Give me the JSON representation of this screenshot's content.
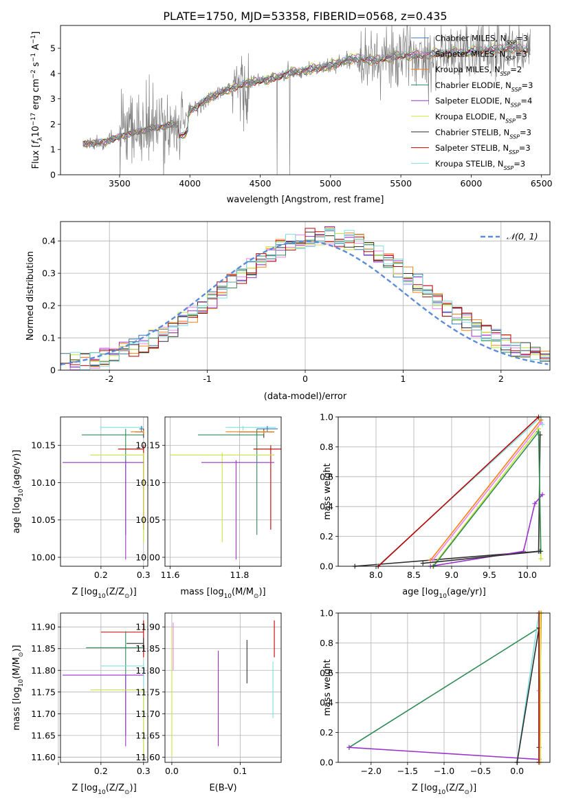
{
  "figure_title": "PLATE=1750, MJD=53358, FIBERID=0568, z=0.435",
  "colors": {
    "chabrier_miles": "#3b75af",
    "salpeter_miles": "#ee82ee",
    "kroupa_miles": "#ff7f0e",
    "chabrier_elodie": "#2e8b57",
    "salpeter_elodie": "#9932cc",
    "kroupa_elodie": "#c6e53c",
    "chabrier_stelib": "#2f2f2f",
    "salpeter_stelib": "#c00000",
    "kroupa_stelib": "#7fdfe0",
    "data": "#808080",
    "gaussian": "#5b8bd9",
    "grid": "#b0b0b0"
  },
  "chart_data": [
    {
      "id": "spectrum",
      "type": "line",
      "title": "PLATE=1750, MJD=53358, FIBERID=0568, z=0.435",
      "xlabel": "wavelength [Angstrom, rest frame]",
      "ylabel": "Flux [f_λ 10^-17 erg cm^-2 s^-1 A^-1]",
      "xlim": [
        3080,
        6560
      ],
      "ylim": [
        0,
        5.9
      ],
      "xticks": [
        3500,
        4000,
        4500,
        5000,
        5500,
        6000,
        6500
      ],
      "yticks": [
        0,
        1,
        2,
        3,
        4,
        5
      ],
      "grid": false,
      "legend_position": "upper right",
      "continuum_knots": {
        "x": [
          3220,
          3240,
          3300,
          3400,
          3500,
          3600,
          3700,
          3800,
          3900,
          3970,
          4000,
          4100,
          4200,
          4300,
          4400,
          4500,
          4600,
          4700,
          4800,
          4900,
          5000,
          5100,
          5200,
          5300,
          5400,
          5500,
          5600,
          5700,
          5800,
          5900,
          6000,
          6100,
          6200,
          6300,
          6420
        ],
        "y": [
          0.9,
          1.2,
          1.25,
          1.3,
          1.5,
          1.65,
          1.8,
          1.9,
          2.0,
          2.1,
          2.5,
          2.9,
          3.2,
          3.4,
          3.6,
          3.7,
          3.8,
          4.0,
          4.1,
          4.2,
          4.3,
          4.5,
          4.6,
          4.5,
          4.6,
          4.7,
          4.7,
          4.75,
          4.8,
          4.8,
          4.85,
          4.9,
          4.95,
          5.0,
          4.9
        ]
      },
      "series": [
        {
          "name": "Chabrier MILES, N_SSP=3",
          "color_key": "chabrier_miles",
          "scale": 1.0
        },
        {
          "name": "Salpeter MILES, N_SSP=3",
          "color_key": "salpeter_miles",
          "scale": 1.01
        },
        {
          "name": "Kroupa MILES, N_SSP=2",
          "color_key": "kroupa_miles",
          "scale": 0.985
        },
        {
          "name": "Chabrier ELODIE, N_SSP=3",
          "color_key": "chabrier_elodie",
          "scale": 0.99
        },
        {
          "name": "Salpeter ELODIE, N_SSP=4",
          "color_key": "salpeter_elodie",
          "scale": 1.02
        },
        {
          "name": "Kroupa ELODIE, N_SSP=3",
          "color_key": "kroupa_elodie",
          "scale": 1.03
        },
        {
          "name": "Chabrier STELIB, N_SSP=3",
          "color_key": "chabrier_stelib",
          "scale": 1.005
        },
        {
          "name": "Salpeter STELIB, N_SSP=3",
          "color_key": "salpeter_stelib",
          "scale": 0.995
        },
        {
          "name": "Kroupa STELIB, N_SSP=3",
          "color_key": "kroupa_stelib",
          "scale": 1.015
        }
      ]
    },
    {
      "id": "residual_histogram",
      "type": "line",
      "xlabel": "(data-model)/error",
      "ylabel": "Normed distribution",
      "xlim": [
        -2.5,
        2.5
      ],
      "ylim": [
        0,
        0.46
      ],
      "xticks": [
        -2,
        -1,
        0,
        1,
        2
      ],
      "yticks": [
        0.0,
        0.1,
        0.2,
        0.3,
        0.4
      ],
      "grid": true,
      "legend_position": "upper right",
      "gaussian_label": "𝒩(0, 1)",
      "bin_width": 0.1
    },
    {
      "id": "age_vs_Z",
      "type": "scatter",
      "xlabel": "Z [log10(Z/Z⊙)]",
      "ylabel": "age [log10(age/yr)]",
      "xlim": [
        0.105,
        0.31
      ],
      "ylim": [
        9.988,
        10.188
      ],
      "xticks": [
        0.2,
        0.3
      ],
      "xtick_labels": [
        "0.2",
        "0.3"
      ],
      "yticks": [
        10.0,
        10.05,
        10.1,
        10.15
      ],
      "ytick_labels": [
        "10.00",
        "10.05",
        "10.10",
        "10.15"
      ],
      "grid": true,
      "points": [
        {
          "color_key": "kroupa_stelib",
          "x": 0.2,
          "x_err": [
            0.2,
            0.3
          ],
          "y": 10.174,
          "y_err": [
            10.17,
            10.176
          ]
        },
        {
          "color_key": "chabrier_miles",
          "x": 0.295,
          "x_err": [
            0.29,
            0.3
          ],
          "y": 10.172,
          "y_err": [
            10.168,
            10.176
          ]
        },
        {
          "color_key": "chabrier_stelib",
          "x": 0.3,
          "x_err": [
            0.28,
            0.3
          ],
          "y": 10.168,
          "y_err": [
            10.16,
            10.172
          ]
        },
        {
          "color_key": "kroupa_miles",
          "x": 0.3,
          "x_err": [
            0.27,
            0.3
          ],
          "y": 10.168,
          "y_err": [
            10.165,
            10.17
          ]
        },
        {
          "color_key": "chabrier_elodie",
          "x": 0.258,
          "x_err": [
            0.155,
            0.3
          ],
          "y": 10.164,
          "y_err": [
            10.03,
            10.172
          ]
        },
        {
          "color_key": "salpeter_stelib",
          "x": 0.3,
          "x_err": [
            0.24,
            0.3
          ],
          "y": 10.145,
          "y_err": [
            10.037,
            10.15
          ]
        },
        {
          "color_key": "kroupa_elodie",
          "x": 0.3,
          "x_err": [
            0.175,
            0.3
          ],
          "y": 10.137,
          "y_err": [
            10.02,
            10.14
          ]
        },
        {
          "color_key": "salpeter_elodie",
          "x": 0.258,
          "x_err": [
            0.11,
            0.3
          ],
          "y": 10.127,
          "y_err": [
            9.997,
            10.13
          ]
        }
      ]
    },
    {
      "id": "age_vs_mass",
      "type": "scatter",
      "xlabel": "mass [log10(M/M⊙)]",
      "ylabel": "",
      "xlim": [
        11.585,
        11.92
      ],
      "ylim": [
        9.988,
        10.188
      ],
      "xticks": [
        11.6,
        11.8
      ],
      "xtick_labels": [
        "11.6",
        "11.8"
      ],
      "yticks": [
        10.0,
        10.05,
        10.1,
        10.15
      ],
      "ytick_labels": [
        "10.00",
        "10.05",
        "10.10",
        "10.15"
      ],
      "grid": true,
      "points": [
        {
          "color_key": "kroupa_stelib",
          "x": 11.81,
          "x_err": [
            11.76,
            11.905
          ],
          "y": 10.174,
          "y_err": [
            10.17,
            10.176
          ]
        },
        {
          "color_key": "chabrier_miles",
          "x": 11.88,
          "x_err": [
            11.85,
            11.91
          ],
          "y": 10.172,
          "y_err": [
            10.168,
            10.176
          ]
        },
        {
          "color_key": "chabrier_stelib",
          "x": 11.87,
          "x_err": [
            11.8,
            11.9
          ],
          "y": 10.168,
          "y_err": [
            10.16,
            10.172
          ]
        },
        {
          "color_key": "kroupa_miles",
          "x": 11.87,
          "x_err": [
            11.76,
            11.9
          ],
          "y": 10.168,
          "y_err": [
            10.165,
            10.17
          ]
        },
        {
          "color_key": "chabrier_elodie",
          "x": 11.85,
          "x_err": [
            11.68,
            11.87
          ],
          "y": 10.164,
          "y_err": [
            10.03,
            10.172
          ]
        },
        {
          "color_key": "salpeter_stelib",
          "x": 11.89,
          "x_err": [
            11.84,
            11.92
          ],
          "y": 10.145,
          "y_err": [
            10.037,
            10.15
          ]
        },
        {
          "color_key": "kroupa_elodie",
          "x": 11.75,
          "x_err": [
            11.6,
            11.9
          ],
          "y": 10.137,
          "y_err": [
            10.02,
            10.14
          ]
        },
        {
          "color_key": "salpeter_elodie",
          "x": 11.79,
          "x_err": [
            11.69,
            11.9
          ],
          "y": 10.127,
          "y_err": [
            9.997,
            10.13
          ]
        }
      ]
    },
    {
      "id": "mass_weight_vs_age",
      "type": "line",
      "xlabel": "age [log10(age/yr)]",
      "ylabel": "mass weight",
      "xlim": [
        7.5,
        10.3
      ],
      "ylim": [
        0,
        1
      ],
      "xticks": [
        8.0,
        8.5,
        9.0,
        9.5,
        10.0
      ],
      "xtick_labels": [
        "8.0",
        "8.5",
        "9.0",
        "9.5",
        "10.0"
      ],
      "yticks": [
        0.0,
        0.2,
        0.4,
        0.6,
        0.8,
        1.0
      ],
      "ytick_labels": [
        "0.0",
        "0.2",
        "0.4",
        "0.6",
        "0.8",
        "1.0"
      ],
      "grid": true,
      "series": [
        {
          "color_key": "chabrier_stelib",
          "x": [
            7.72,
            10.15,
            10.17
          ],
          "y": [
            0.0,
            0.1,
            0.88
          ]
        },
        {
          "color_key": "kroupa_stelib",
          "x": [
            8.02,
            10.18,
            10.2
          ],
          "y": [
            0.0,
            1.0,
            0.95
          ]
        },
        {
          "color_key": "salpeter_stelib",
          "x": [
            8.03,
            10.15
          ],
          "y": [
            0.0,
            1.0
          ]
        },
        {
          "color_key": "kroupa_miles",
          "x": [
            8.72,
            10.18
          ],
          "y": [
            0.04,
            0.98
          ]
        },
        {
          "color_key": "salpeter_miles",
          "x": [
            8.75,
            10.18
          ],
          "y": [
            0.04,
            0.96
          ]
        },
        {
          "color_key": "kroupa_elodie",
          "x": [
            8.75,
            10.15,
            10.18
          ],
          "y": [
            0.0,
            0.92,
            0.05
          ]
        },
        {
          "color_key": "salpeter_elodie",
          "x": [
            8.72,
            9.95,
            10.1,
            10.2
          ],
          "y": [
            0.0,
            0.1,
            0.42,
            0.48
          ]
        },
        {
          "color_key": "chabrier_elodie",
          "x": [
            8.76,
            10.15,
            10.18
          ],
          "y": [
            0.0,
            0.9,
            0.1
          ]
        },
        {
          "color_key": "chabrier_stelib",
          "x": [
            8.62,
            10.17
          ],
          "y": [
            0.02,
            0.1
          ]
        }
      ]
    },
    {
      "id": "mass_vs_Z",
      "type": "scatter",
      "xlabel": "Z [log10(Z/Z⊙)]",
      "ylabel": "mass [log10(M/M⊙)]",
      "xlim": [
        0.105,
        0.31
      ],
      "ylim": [
        11.588,
        11.932
      ],
      "xticks": [
        0.1,
        0.2,
        0.3
      ],
      "xtick_labels": [
        "",
        "0.2",
        "0.3"
      ],
      "yticks": [
        11.6,
        11.65,
        11.7,
        11.75,
        11.8,
        11.85,
        11.9
      ],
      "ytick_labels": [
        "11.60",
        "11.65",
        "11.70",
        "11.75",
        "11.80",
        "11.85",
        "11.90"
      ],
      "grid": true,
      "points": [
        {
          "color_key": "salpeter_stelib",
          "x": 0.3,
          "x_err": [
            0.2,
            0.3
          ],
          "y": 11.888,
          "y_err": [
            11.83,
            11.915
          ]
        },
        {
          "color_key": "chabrier_stelib",
          "x": 0.3,
          "x_err": [
            0.26,
            0.3
          ],
          "y": 11.862,
          "y_err": [
            11.85,
            11.875
          ]
        },
        {
          "color_key": "chabrier_elodie",
          "x": 0.258,
          "x_err": [
            0.165,
            0.3
          ],
          "y": 11.852,
          "y_err": [
            11.65,
            11.89
          ]
        },
        {
          "color_key": "kroupa_stelib",
          "x": 0.3,
          "x_err": [
            0.2,
            0.3
          ],
          "y": 11.81,
          "y_err": [
            11.69,
            11.82
          ]
        },
        {
          "color_key": "salpeter_elodie",
          "x": 0.258,
          "x_err": [
            0.11,
            0.3
          ],
          "y": 11.789,
          "y_err": [
            11.625,
            11.79
          ]
        },
        {
          "color_key": "kroupa_elodie",
          "x": 0.3,
          "x_err": [
            0.175,
            0.3
          ],
          "y": 11.755,
          "y_err": [
            11.6,
            11.76
          ]
        }
      ]
    },
    {
      "id": "mass_vs_EBV",
      "type": "scatter",
      "xlabel": "E(B-V)",
      "ylabel": "",
      "xlim": [
        -0.01,
        0.16
      ],
      "ylim": [
        11.588,
        11.932
      ],
      "xticks": [
        0.0,
        0.1
      ],
      "xtick_labels": [
        "0.0",
        "0.1"
      ],
      "yticks": [
        11.6,
        11.65,
        11.7,
        11.75,
        11.8,
        11.85,
        11.9
      ],
      "ytick_labels": [
        "11.60",
        "11.65",
        "11.70",
        "11.75",
        "11.80",
        "11.85",
        "11.90"
      ],
      "grid": true,
      "points": [
        {
          "color_key": "salpeter_miles",
          "x": 0.002,
          "x_err": [
            0.002,
            0.002
          ],
          "y": 11.85,
          "y_err": [
            11.8,
            11.91
          ]
        },
        {
          "color_key": "kroupa_elodie",
          "x": 0.0,
          "x_err": [
            0.0,
            0.0
          ],
          "y": 11.75,
          "y_err": [
            11.6,
            11.9
          ]
        },
        {
          "color_key": "salpeter_elodie",
          "x": 0.068,
          "x_err": [
            0.068,
            0.068
          ],
          "y": 11.73,
          "y_err": [
            11.625,
            11.845
          ]
        },
        {
          "color_key": "chabrier_stelib",
          "x": 0.11,
          "x_err": [
            0.11,
            0.11
          ],
          "y": 11.82,
          "y_err": [
            11.77,
            11.87
          ]
        },
        {
          "color_key": "salpeter_stelib",
          "x": 0.15,
          "x_err": [
            0.15,
            0.15
          ],
          "y": 11.87,
          "y_err": [
            11.83,
            11.915
          ]
        },
        {
          "color_key": "kroupa_stelib",
          "x": 0.148,
          "x_err": [
            0.148,
            0.148
          ],
          "y": 11.75,
          "y_err": [
            11.69,
            11.82
          ]
        }
      ]
    },
    {
      "id": "mass_weight_vs_Z",
      "type": "line",
      "xlabel": "Z [log10(Z/Z⊙)]",
      "ylabel": "mass weight",
      "xlim": [
        -2.45,
        0.45
      ],
      "ylim": [
        0,
        1
      ],
      "xticks": [
        -2.0,
        -1.5,
        -1.0,
        -0.5,
        0.0
      ],
      "xtick_labels": [
        "−2.0",
        "−1.5",
        "−1.0",
        "−0.5",
        "0.0"
      ],
      "yticks": [
        0.0,
        0.2,
        0.4,
        0.6,
        0.8,
        1.0
      ],
      "ytick_labels": [
        "0.0",
        "0.2",
        "0.4",
        "0.6",
        "0.8",
        "1.0"
      ],
      "grid": true,
      "series": [
        {
          "color_key": "chabrier_elodie",
          "x": [
            -2.3,
            0.3,
            0.3
          ],
          "y": [
            0.1,
            0.9,
            0.0
          ]
        },
        {
          "color_key": "salpeter_elodie",
          "x": [
            -2.3,
            0.3
          ],
          "y": [
            0.1,
            0.02
          ]
        },
        {
          "color_key": "kroupa_stelib",
          "x": [
            0.0,
            0.3,
            0.3
          ],
          "y": [
            0.0,
            1.0,
            0.0
          ]
        },
        {
          "color_key": "chabrier_stelib",
          "x": [
            0.0,
            0.3,
            0.3
          ],
          "y": [
            0.0,
            0.9,
            0.1
          ]
        },
        {
          "color_key": "kroupa_miles",
          "x": [
            0.3,
            0.33
          ],
          "y": [
            0.0,
            1.0
          ]
        },
        {
          "color_key": "salpeter_miles",
          "x": [
            0.3,
            0.3
          ],
          "y": [
            0.0,
            0.48
          ]
        },
        {
          "color_key": "salpeter_stelib",
          "x": [
            0.3,
            0.3
          ],
          "y": [
            0.0,
            1.0
          ]
        },
        {
          "color_key": "kroupa_elodie",
          "x": [
            0.32,
            0.32
          ],
          "y": [
            0.0,
            1.0
          ]
        }
      ]
    }
  ]
}
